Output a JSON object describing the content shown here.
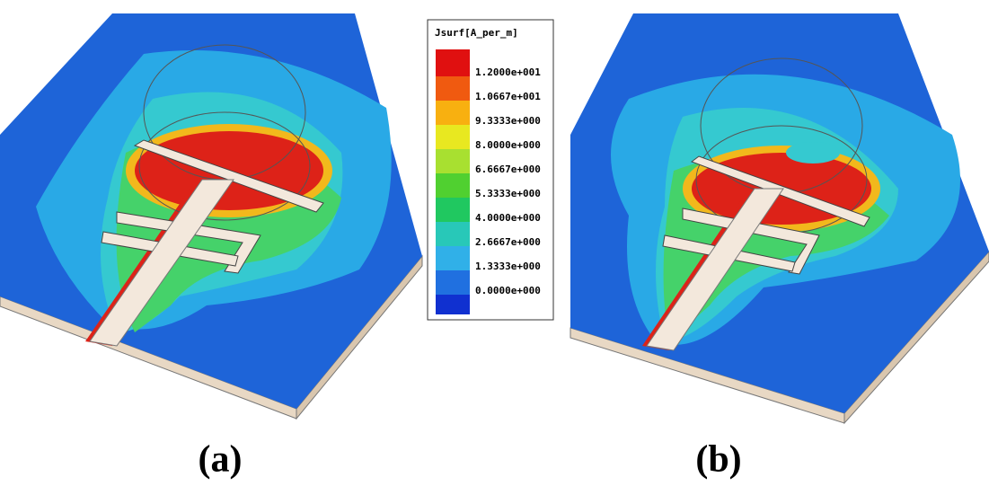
{
  "legend": {
    "title": "Jsurf[A_per_m]",
    "labels": [
      "1.2000e+001",
      "1.0667e+001",
      "9.3333e+000",
      "8.0000e+000",
      "6.6667e+000",
      "5.3333e+000",
      "4.0000e+000",
      "2.6667e+000",
      "1.3333e+000",
      "0.0000e+000"
    ]
  },
  "panels": [
    {
      "label": "(a)"
    },
    {
      "label": "(b)"
    }
  ]
}
